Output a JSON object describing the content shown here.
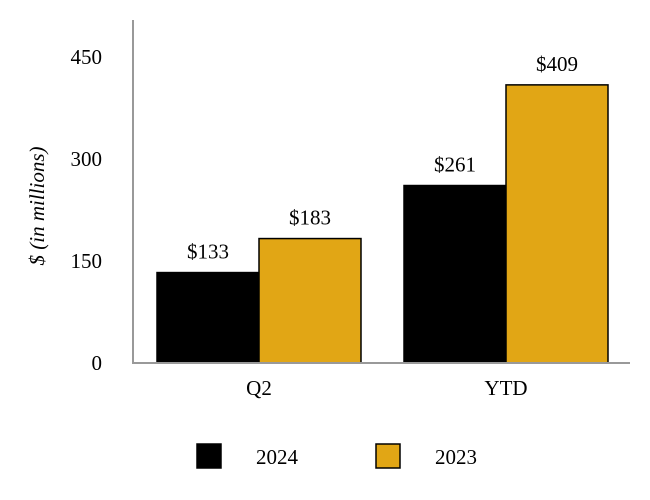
{
  "chart_data": {
    "type": "bar",
    "title": "",
    "xlabel": "",
    "ylabel": "$ (in millions)",
    "ylim": [
      0,
      450
    ],
    "yticks": [
      "0",
      "150",
      "300",
      "450"
    ],
    "ytick_values": [
      0,
      150,
      300,
      450
    ],
    "categories": [
      "Q2",
      "YTD"
    ],
    "series": [
      {
        "name": "2024",
        "values": [
          133,
          261
        ],
        "labels": [
          "$133",
          "$261"
        ],
        "color": "#000000"
      },
      {
        "name": "2023",
        "values": [
          183,
          409
        ],
        "labels": [
          "$183",
          "$409"
        ],
        "color": "#E1A615"
      }
    ],
    "grid": false,
    "legend": "bottom"
  }
}
